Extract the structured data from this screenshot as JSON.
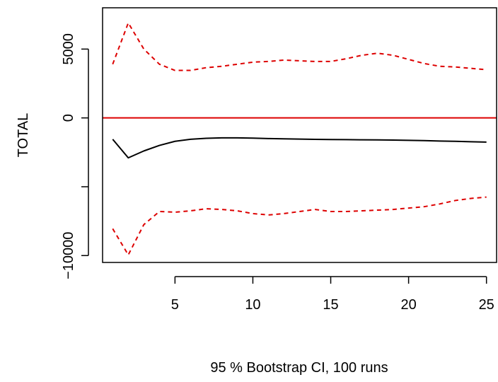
{
  "chart_data": {
    "type": "line",
    "title": "",
    "xlabel": "",
    "ylabel": "TOTAL",
    "subtitle": "95 % Bootstrap CI,  100 runs",
    "xlim": [
      0.35,
      25.65
    ],
    "ylim": [
      -10500,
      8000
    ],
    "x_ticks": [
      5,
      10,
      15,
      20,
      25
    ],
    "x_tick_labels": [
      "5",
      "10",
      "15",
      "20",
      "25"
    ],
    "y_ticks": [
      -10000,
      -5000,
      0,
      5000
    ],
    "y_tick_labels": [
      "−10000",
      "",
      "0",
      "5000"
    ],
    "grid": false,
    "legend": "none",
    "reference_line": {
      "y": 0,
      "color": "#dd0000"
    },
    "x": [
      1,
      2,
      3,
      4,
      5,
      6,
      7,
      8,
      9,
      10,
      11,
      12,
      13,
      14,
      15,
      16,
      17,
      18,
      19,
      20,
      21,
      22,
      23,
      24,
      25
    ],
    "series": [
      {
        "role": "estimate",
        "color": "#000000",
        "dash": "solid",
        "values": [
          -1550,
          -2900,
          -2400,
          -2000,
          -1700,
          -1550,
          -1480,
          -1450,
          -1450,
          -1470,
          -1500,
          -1520,
          -1540,
          -1560,
          -1570,
          -1580,
          -1590,
          -1600,
          -1610,
          -1630,
          -1650,
          -1680,
          -1700,
          -1730,
          -1760
        ]
      },
      {
        "role": "upper",
        "color": "#dd0000",
        "dash": "dashed",
        "values": [
          3900,
          6900,
          5000,
          3900,
          3450,
          3450,
          3650,
          3750,
          3900,
          4050,
          4100,
          4200,
          4150,
          4100,
          4100,
          4300,
          4550,
          4700,
          4550,
          4250,
          3950,
          3750,
          3700,
          3600,
          3500
        ]
      },
      {
        "role": "lower",
        "color": "#dd0000",
        "dash": "dashed",
        "values": [
          -8050,
          -9950,
          -7750,
          -6800,
          -6850,
          -6750,
          -6600,
          -6650,
          -6750,
          -6950,
          -7050,
          -6950,
          -6800,
          -6650,
          -6800,
          -6800,
          -6750,
          -6700,
          -6650,
          -6550,
          -6450,
          -6250,
          -6000,
          -5850,
          -5750
        ]
      }
    ]
  }
}
